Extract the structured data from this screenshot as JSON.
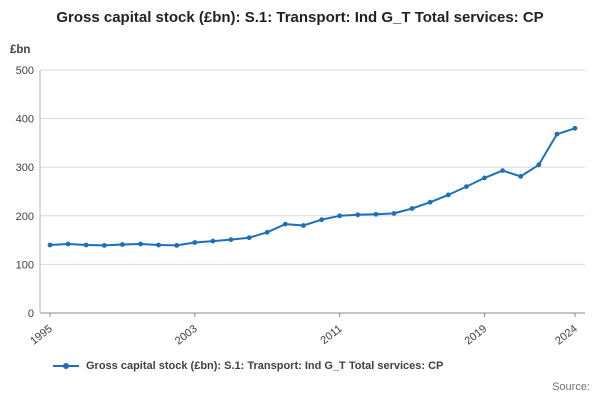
{
  "title": "Gross capital stock (£bn): S.1: Transport: Ind G_T Total services: CP",
  "y_axis_unit": "£bn",
  "source_label": "Source:",
  "legend": {
    "label": "Gross capital stock (£bn): S.1: Transport: Ind G_T Total services: CP",
    "marker": "line-with-dot"
  },
  "colors": {
    "line": "#1d70b8",
    "grid": "#d9d9d9",
    "axis": "#b3b3b3",
    "baseline": "#8a8a8a",
    "tick_text": "#414042"
  },
  "chart_data": {
    "type": "line",
    "title": "Gross capital stock (£bn): S.1: Transport: Ind G_T Total services: CP",
    "xlabel": "",
    "ylabel": "£bn",
    "ylim": [
      0,
      500
    ],
    "yticks": [
      0,
      100,
      200,
      300,
      400,
      500
    ],
    "xticks": [
      1995,
      2003,
      2011,
      2019,
      2024
    ],
    "grid": true,
    "legend_position": "bottom",
    "marker": "circle",
    "x": [
      1995,
      1996,
      1997,
      1998,
      1999,
      2000,
      2001,
      2002,
      2003,
      2004,
      2005,
      2006,
      2007,
      2008,
      2009,
      2010,
      2011,
      2012,
      2013,
      2014,
      2015,
      2016,
      2017,
      2018,
      2019,
      2020,
      2021,
      2022,
      2023,
      2024
    ],
    "series": [
      {
        "name": "Gross capital stock (£bn): S.1: Transport: Ind G_T Total services: CP",
        "values": [
          140,
          142,
          140,
          139,
          141,
          142,
          140,
          139,
          145,
          148,
          151,
          155,
          166,
          183,
          180,
          192,
          200,
          202,
          203,
          205,
          215,
          228,
          243,
          260,
          278,
          293,
          281,
          305,
          368,
          380
        ]
      }
    ]
  }
}
